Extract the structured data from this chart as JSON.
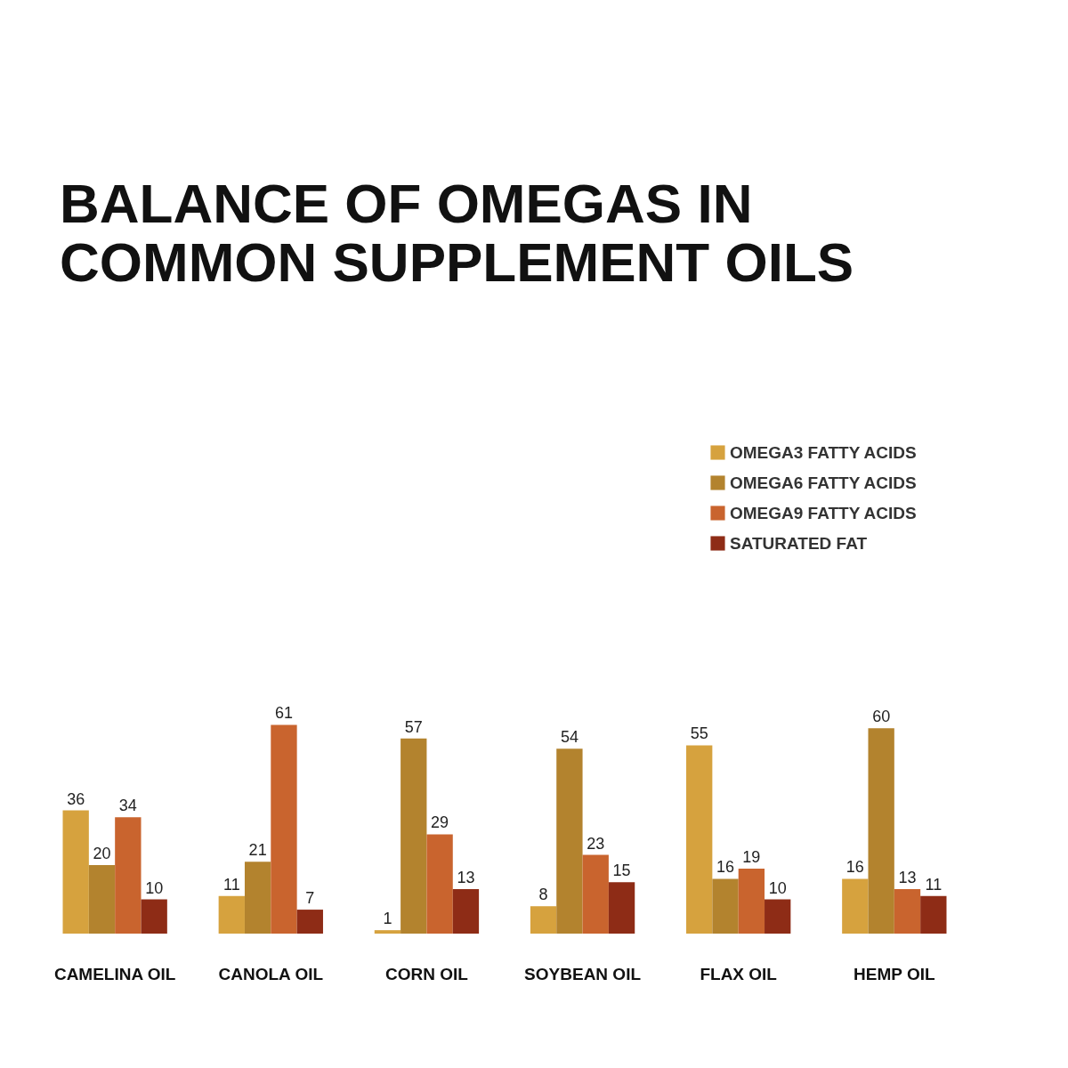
{
  "chart_data": {
    "type": "bar",
    "title": "BALANCE OF OMEGAS IN\nCOMMON SUPPLEMENT OILS",
    "categories": [
      "CAMELINA OIL",
      "CANOLA OIL",
      "CORN OIL",
      "SOYBEAN OIL",
      "FLAX OIL",
      "HEMP OIL"
    ],
    "series": [
      {
        "name": "OMEGA3 FATTY ACIDS",
        "color": "#d6a23e",
        "values": [
          36,
          11,
          1,
          8,
          55,
          16
        ]
      },
      {
        "name": "OMEGA6 FATTY ACIDS",
        "color": "#b3832e",
        "values": [
          20,
          21,
          57,
          54,
          16,
          60
        ]
      },
      {
        "name": "OMEGA9 FATTY ACIDS",
        "color": "#c9642e",
        "values": [
          34,
          61,
          29,
          23,
          19,
          13
        ]
      },
      {
        "name": "SATURATED FAT",
        "color": "#8e2c16",
        "values": [
          10,
          7,
          13,
          15,
          10,
          11
        ]
      }
    ],
    "data_labels": true,
    "legend": "top right",
    "grid": false
  }
}
